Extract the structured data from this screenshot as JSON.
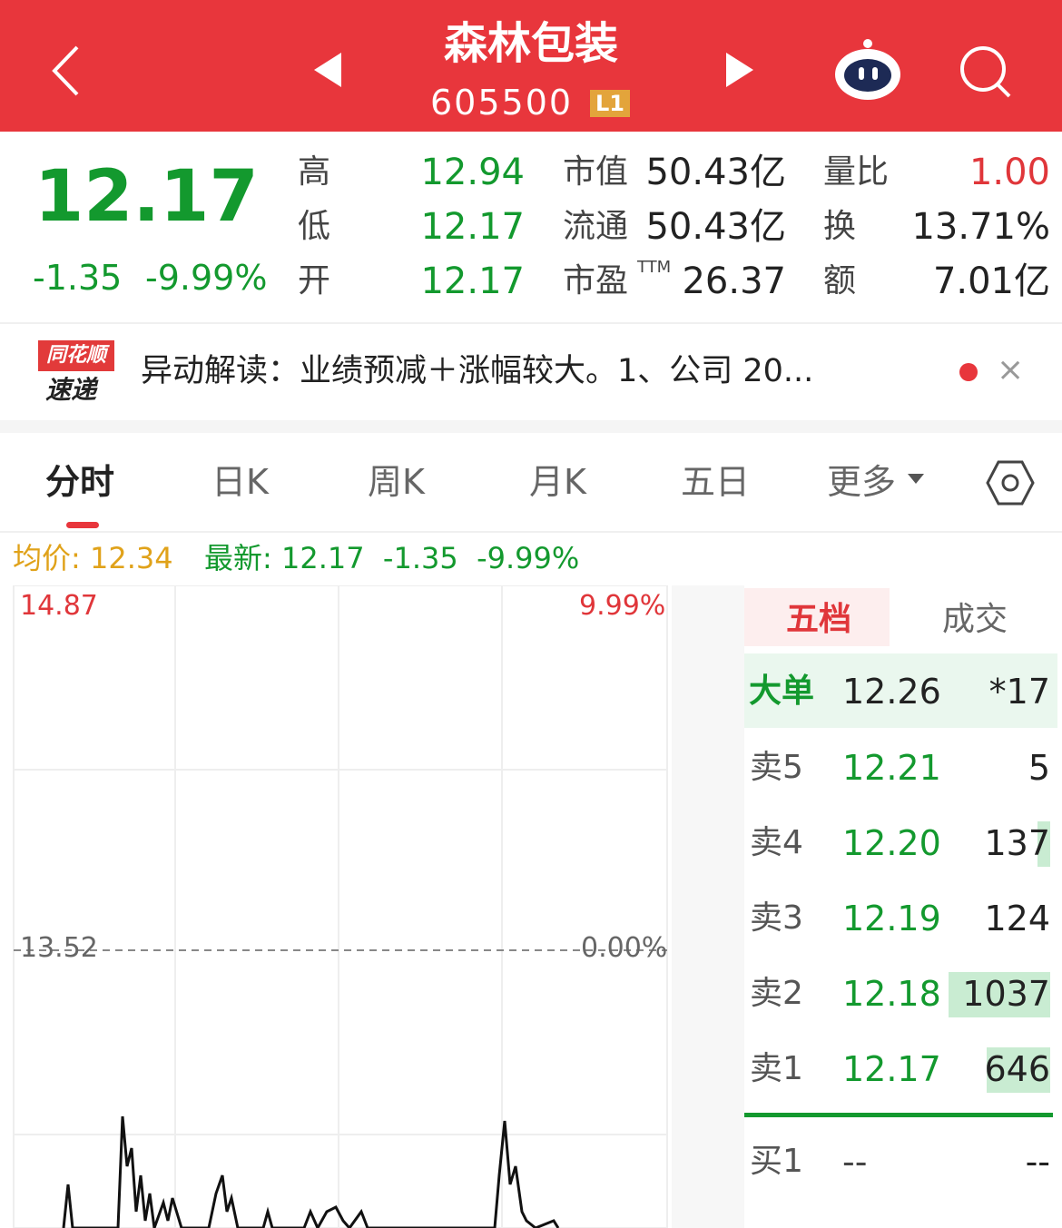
{
  "header": {
    "title": "森林包装",
    "code": "605500",
    "badge": "L1"
  },
  "quote": {
    "price": "12.17",
    "change": "-1.35",
    "change_pct": "-9.99%",
    "stats": [
      {
        "label": "高",
        "value": "12.94"
      },
      {
        "label": "低",
        "value": "12.17"
      },
      {
        "label": "开",
        "value": "12.17"
      }
    ],
    "market": [
      {
        "label": "市值",
        "value": "50.43亿"
      },
      {
        "label": "流通",
        "value": "50.43亿"
      },
      {
        "label": "市盈",
        "sup": "TTM",
        "value": "26.37"
      }
    ],
    "extra": [
      {
        "label": "量比",
        "value": "1.00"
      },
      {
        "label": "换",
        "value": "13.71%"
      },
      {
        "label": "额",
        "value": "7.01亿"
      }
    ]
  },
  "news": {
    "brand_top": "同花顺",
    "brand_bottom": "速递",
    "text": "异动解读：业绩预减＋涨幅较大。1、公司 20..."
  },
  "tabs": [
    "分时",
    "日K",
    "周K",
    "月K",
    "五日",
    "更多"
  ],
  "summary": {
    "avg_label": "均价:",
    "avg": "12.34",
    "latest_label": "最新:",
    "latest": "12.17",
    "change": "-1.35",
    "change_pct": "-9.99%"
  },
  "chart": {
    "price_top": "14.87",
    "pct_top": "9.99%",
    "price_mid": "13.52",
    "pct_mid": "0.00%"
  },
  "order_book": {
    "tabs": [
      "五档",
      "成交"
    ],
    "big": {
      "label": "大单",
      "price": "12.26",
      "volume": "*17"
    },
    "asks": [
      {
        "label": "卖5",
        "price": "12.21",
        "volume": "5"
      },
      {
        "label": "卖4",
        "price": "12.20",
        "volume": "137"
      },
      {
        "label": "卖3",
        "price": "12.19",
        "volume": "124"
      },
      {
        "label": "卖2",
        "price": "12.18",
        "volume": "1037"
      },
      {
        "label": "卖1",
        "price": "12.17",
        "volume": "646"
      }
    ],
    "bids": [
      {
        "label": "买1",
        "price": "--",
        "volume": "--"
      }
    ]
  }
}
